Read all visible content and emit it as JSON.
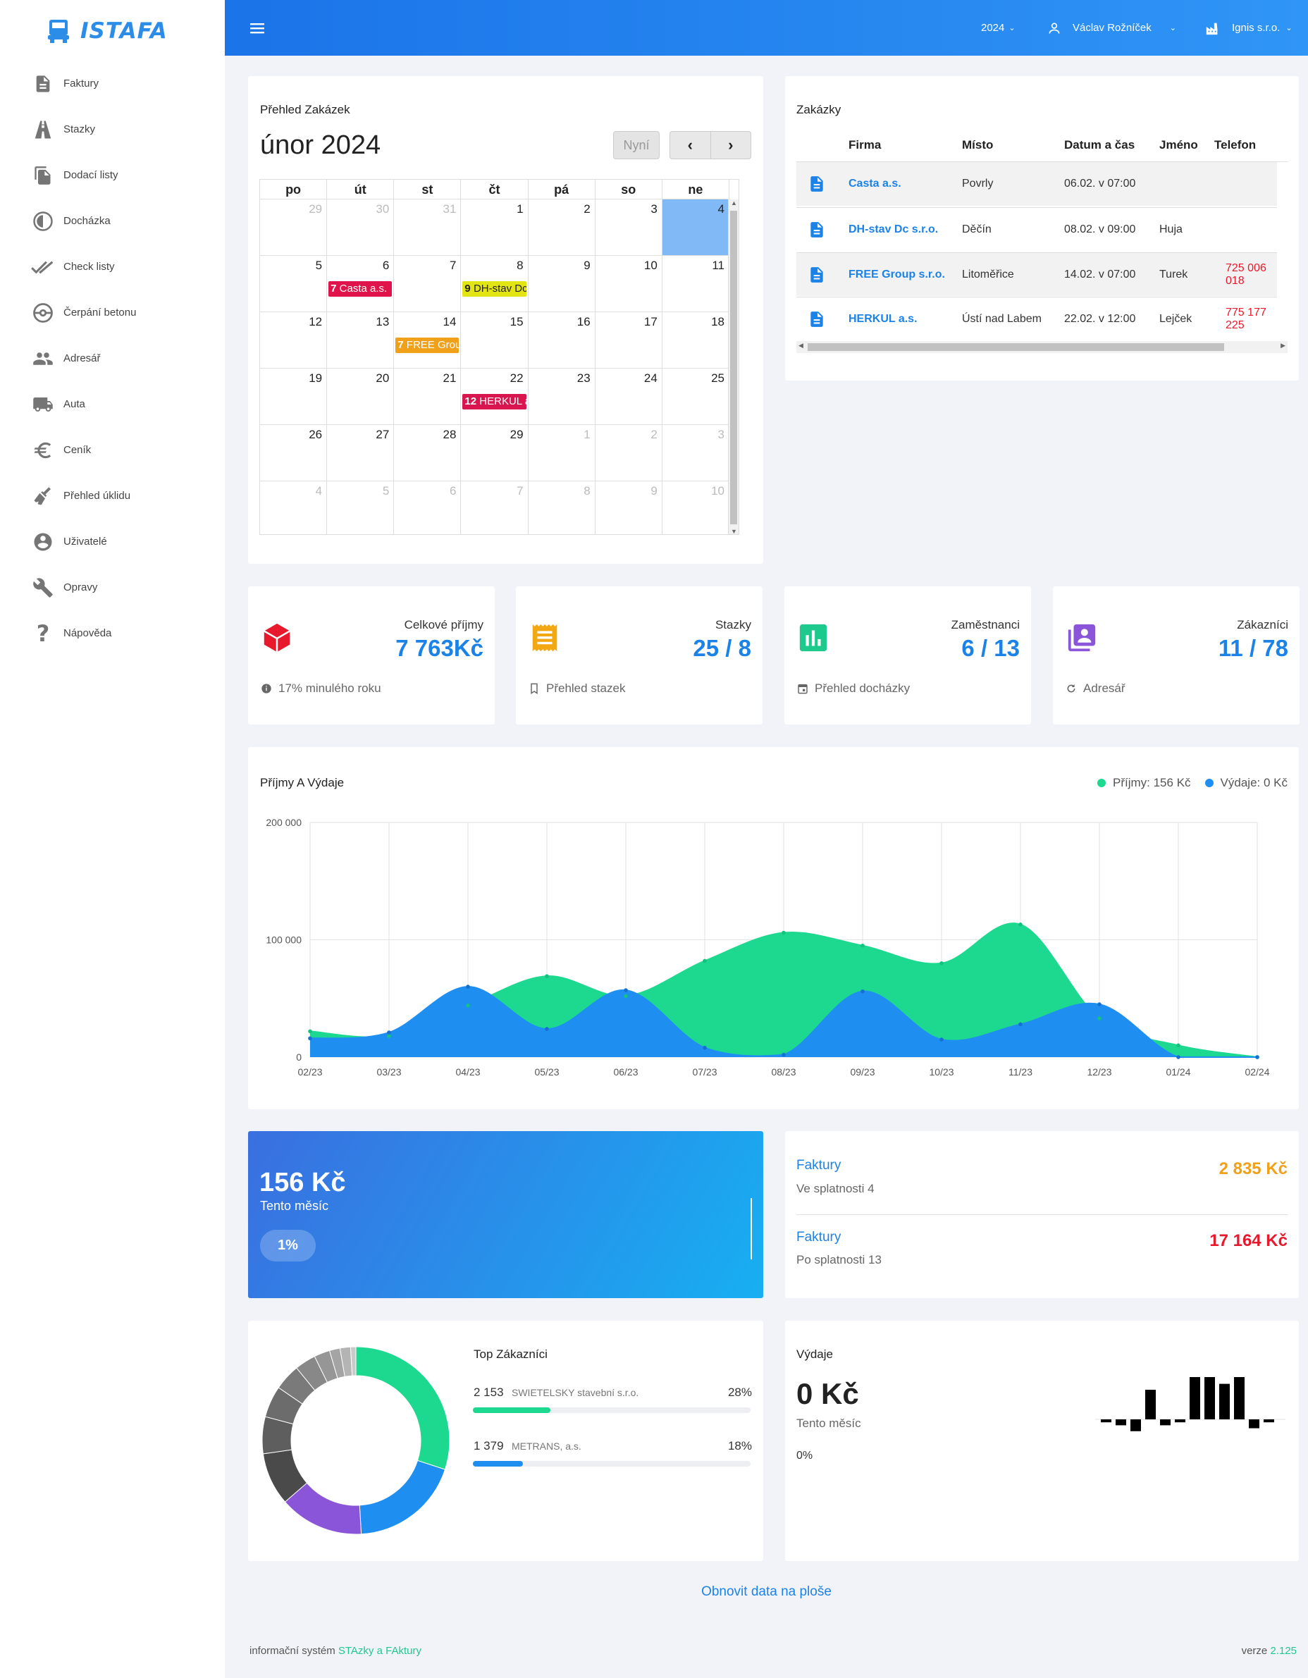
{
  "app": {
    "logo_text": "ISTAFA"
  },
  "sidebar": {
    "items": [
      {
        "label": "Faktury",
        "icon": "document-icon"
      },
      {
        "label": "Stazky",
        "icon": "road-icon"
      },
      {
        "label": "Dodací listy",
        "icon": "copy-icon"
      },
      {
        "label": "Docházka",
        "icon": "clock-icon"
      },
      {
        "label": "Check listy",
        "icon": "double-check-icon"
      },
      {
        "label": "Čerpání betonu",
        "icon": "pump-icon"
      },
      {
        "label": "Adresář",
        "icon": "people-icon"
      },
      {
        "label": "Auta",
        "icon": "truck-icon"
      },
      {
        "label": "Ceník",
        "icon": "euro-icon"
      },
      {
        "label": "Přehled úklidu",
        "icon": "broom-icon"
      },
      {
        "label": "Uživatelé",
        "icon": "user-circle-icon"
      },
      {
        "label": "Opravy",
        "icon": "wrench-icon"
      },
      {
        "label": "Nápověda",
        "icon": "question-icon"
      }
    ]
  },
  "topbar": {
    "year": "2024",
    "user": "Václav Rožníček",
    "company": "Ignis s.r.o."
  },
  "calendar": {
    "card_title": "Přehled Zakázek",
    "month_title": "únor 2024",
    "now_label": "Nyní",
    "weekdays": [
      "po",
      "út",
      "st",
      "čt",
      "pá",
      "so",
      "ne"
    ],
    "weeks": [
      [
        "29",
        "30",
        "31",
        "1",
        "2",
        "3",
        "4"
      ],
      [
        "5",
        "6",
        "7",
        "8",
        "9",
        "10",
        "11"
      ],
      [
        "12",
        "13",
        "14",
        "15",
        "16",
        "17",
        "18"
      ],
      [
        "19",
        "20",
        "21",
        "22",
        "23",
        "24",
        "25"
      ],
      [
        "26",
        "27",
        "28",
        "29",
        "1",
        "2",
        "3"
      ],
      [
        "4",
        "5",
        "6",
        "7",
        "8",
        "9",
        "10"
      ]
    ],
    "events": [
      {
        "time": "7",
        "title": "Casta a.s.",
        "color": "#e0134a"
      },
      {
        "time": "9",
        "title": "DH-stav Dc s.r.o.",
        "color": "#e2e414"
      },
      {
        "time": "7",
        "title": "FREE Group s.r.o.",
        "color": "#f0a019"
      },
      {
        "time": "12",
        "title": "HERKUL a.s.",
        "color": "#d8154e"
      }
    ]
  },
  "orders": {
    "card_title": "Zakázky",
    "columns": [
      "Firma",
      "Místo",
      "Datum a čas",
      "Jméno",
      "Telefon"
    ],
    "rows": [
      {
        "firma": "Casta a.s.",
        "misto": "Povrly",
        "datum": "06.02. v 07:00",
        "jmeno": "",
        "telefon": ""
      },
      {
        "firma": "DH-stav Dc s.r.o.",
        "misto": "Děčín",
        "datum": "08.02. v 09:00",
        "jmeno": "Huja",
        "telefon": ""
      },
      {
        "firma": "FREE Group s.r.o.",
        "misto": "Litoměřice",
        "datum": "14.02. v 07:00",
        "jmeno": "Turek",
        "telefon": "725 006 018"
      },
      {
        "firma": "HERKUL a.s.",
        "misto": "Ústí nad Labem",
        "datum": "22.02. v 12:00",
        "jmeno": "Lejček",
        "telefon": "775 177 225"
      }
    ]
  },
  "stats": [
    {
      "label": "Celkové příjmy",
      "value": "7 763Kč",
      "footer": "17% minulého roku",
      "icon": "cube-icon",
      "color": "#e8192c"
    },
    {
      "label": "Stazky",
      "value": "25 / 8",
      "footer": "Přehled stazek",
      "icon": "receipt-icon",
      "color": "#f3a712"
    },
    {
      "label": "Zaměstnanci",
      "value": "6 / 13",
      "footer": "Přehled docházky",
      "icon": "bar-chart-icon",
      "color": "#1ec98e"
    },
    {
      "label": "Zákazníci",
      "value": "11 / 78",
      "footer": "Adresář",
      "icon": "contacts-icon",
      "color": "#8a55d8"
    }
  ],
  "income_chart": {
    "card_title": "Příjmy A Výdaje",
    "legend_income": "Příjmy: 156 Kč",
    "legend_expense": "Výdaje: 0 Kč"
  },
  "chart_data": {
    "type": "area",
    "title": "Příjmy A Výdaje",
    "x": [
      "02/23",
      "03/23",
      "04/23",
      "05/23",
      "06/23",
      "07/23",
      "08/23",
      "09/23",
      "10/23",
      "11/23",
      "12/23",
      "01/24",
      "02/24"
    ],
    "y_ticks": [
      "200 000",
      "100 000",
      "0"
    ],
    "ylim": [
      0,
      200000
    ],
    "grid": true,
    "legend": "top-right",
    "series": [
      {
        "name": "Příjmy",
        "color": "#1dd98f",
        "values": [
          22000,
          18000,
          44000,
          69000,
          52000,
          82000,
          106000,
          95000,
          80000,
          113000,
          33000,
          10000,
          0
        ]
      },
      {
        "name": "Výdaje",
        "color": "#1e8ff0",
        "values": [
          16000,
          21000,
          60000,
          24000,
          57000,
          8000,
          2000,
          56000,
          15000,
          28000,
          45000,
          0,
          0
        ]
      }
    ]
  },
  "month_card": {
    "amount": "156 Kč",
    "label": "Tento měsíc",
    "percent": "1%"
  },
  "invoices": [
    {
      "title": "Faktury",
      "subtitle": "Ve splatnosti 4",
      "amount": "2 835 Kč",
      "color": "#f0a019"
    },
    {
      "title": "Faktury",
      "subtitle": "Po splatnosti 13",
      "amount": "17 164 Kč",
      "color": "#e8192c"
    }
  ],
  "top_customers": {
    "title": "Top Zákazníci",
    "donut_values": [
      33,
      21,
      16,
      10,
      7,
      6,
      5,
      4,
      3,
      2,
      2,
      1
    ],
    "donut_colors": [
      "#1dd98f",
      "#1e8ff0",
      "#8a55d8",
      "#4a4a4a",
      "#5e5e5e",
      "#6c6c6c",
      "#7a7a7a",
      "#888888",
      "#969696",
      "#a4a4a4",
      "#b4b4b4",
      "#cacaca"
    ],
    "items": [
      {
        "amount": "2 153",
        "name": "SWIETELSKY stavební s.r.o.",
        "percent": "28%",
        "fraction": 0.28,
        "color": "#1dd98f"
      },
      {
        "amount": "1 379",
        "name": "METRANS, a.s.",
        "percent": "18%",
        "fraction": 0.18,
        "color": "#1e8ff0"
      }
    ]
  },
  "expenses": {
    "title": "Výdaje",
    "amount": "0 Kč",
    "label": "Tento měsíc",
    "percent": "0%",
    "bars": [
      -1,
      -2,
      -4,
      10,
      -2,
      -1,
      16,
      22,
      12,
      16,
      -3,
      -1
    ]
  },
  "refresh_label": "Obnovit data na ploše",
  "footer": {
    "prefix": "informační systém ",
    "link": "STAzky a FAktury",
    "version_label": "verze ",
    "version": "2.125"
  }
}
